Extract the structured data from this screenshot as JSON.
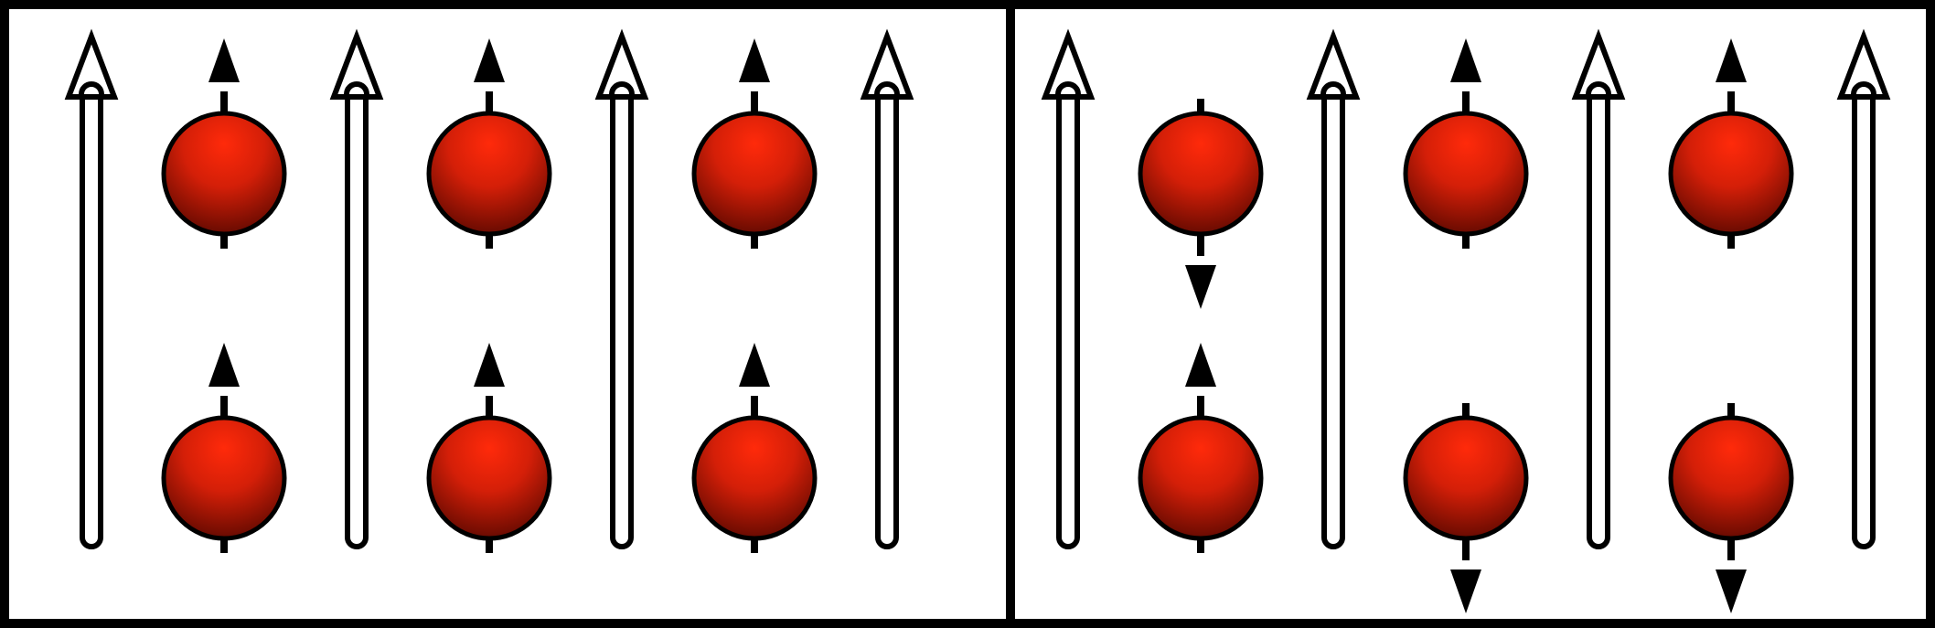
{
  "colors": {
    "background": "#ffffff",
    "outline": "#000000",
    "sphere_highlight": "#ff2a0a",
    "sphere_mid": "#d41f08",
    "sphere_shadow": "#5a0800",
    "field_arrow_fill": "#ffffff"
  },
  "panels": [
    {
      "name": "left-panel",
      "columns": [
        {
          "kind": "field-arrow"
        },
        {
          "kind": "spins",
          "top": "up",
          "bottom": "up"
        },
        {
          "kind": "field-arrow"
        },
        {
          "kind": "spins",
          "top": "up",
          "bottom": "up"
        },
        {
          "kind": "field-arrow"
        },
        {
          "kind": "spins",
          "top": "up",
          "bottom": "up"
        },
        {
          "kind": "field-arrow"
        }
      ]
    },
    {
      "name": "right-panel",
      "columns": [
        {
          "kind": "field-arrow"
        },
        {
          "kind": "spins",
          "top": "down",
          "bottom": "up"
        },
        {
          "kind": "field-arrow"
        },
        {
          "kind": "spins",
          "top": "up",
          "bottom": "down"
        },
        {
          "kind": "field-arrow"
        },
        {
          "kind": "spins",
          "top": "up",
          "bottom": "down"
        },
        {
          "kind": "field-arrow"
        }
      ]
    }
  ]
}
